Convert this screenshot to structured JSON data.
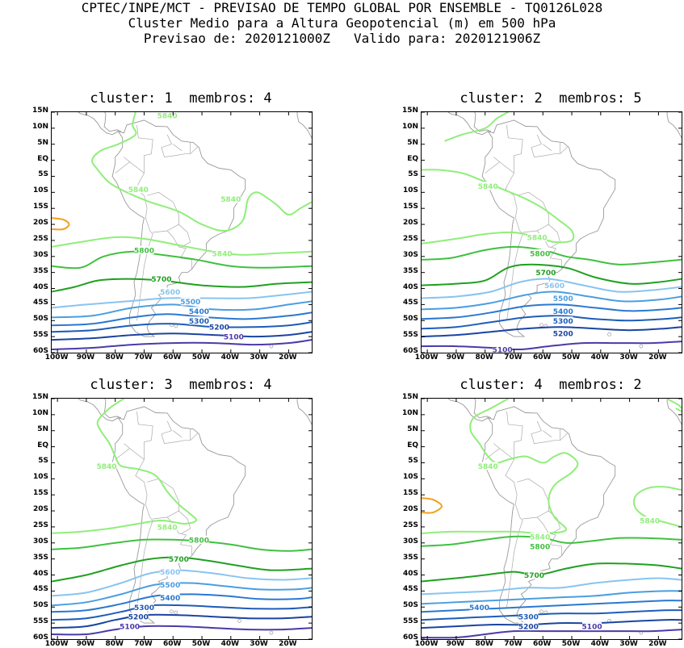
{
  "header": {
    "line1": "CPTEC/INPE/MCT - PREVISAO DE TEMPO GLOBAL POR ENSEMBLE - TQ0126L028",
    "line2": "Cluster Medio para a Altura Geopotencial (m) em 500 hPa",
    "line3": "Previsao de: 2020121000Z   Valido para: 2020121906Z"
  },
  "axes": {
    "lat_ticks": [
      "15N",
      "10N",
      "5N",
      "EQ",
      "5S",
      "10S",
      "15S",
      "20S",
      "25S",
      "30S",
      "35S",
      "40S",
      "45S",
      "50S",
      "55S",
      "60S"
    ],
    "lon_ticks": [
      "100W",
      "90W",
      "80W",
      "70W",
      "60W",
      "50W",
      "40W",
      "30W",
      "20W"
    ]
  },
  "colors": {
    "c5840": "#90ee7a",
    "c5800": "#40c040",
    "c5700": "#20a020",
    "c5600": "#88c4f0",
    "c5500": "#4a9ee0",
    "c5400": "#2a78d0",
    "c5300": "#1e5cb8",
    "c5200": "#1a44a0",
    "c5100": "#4a3aa8",
    "high": "#f0a020",
    "coast": "#999999"
  },
  "panels": [
    {
      "title": "cluster: 1  membros: 4",
      "labels": [
        {
          "text": "5840",
          "c": "c5840",
          "lon": -62,
          "lat": 14
        },
        {
          "text": "5840",
          "c": "c5840",
          "lon": -72,
          "lat": -9
        },
        {
          "text": "5840",
          "c": "c5840",
          "lon": -40,
          "lat": -12
        },
        {
          "text": "5840",
          "c": "c5840",
          "lon": -43,
          "lat": -29
        },
        {
          "text": "5800",
          "c": "c5800",
          "lon": -70,
          "lat": -28
        },
        {
          "text": "5700",
          "c": "c5700",
          "lon": -64,
          "lat": -37
        },
        {
          "text": "5600",
          "c": "c5600",
          "lon": -61,
          "lat": -41
        },
        {
          "text": "5500",
          "c": "c5500",
          "lon": -54,
          "lat": -44
        },
        {
          "text": "5400",
          "c": "c5400",
          "lon": -51,
          "lat": -47
        },
        {
          "text": "5300",
          "c": "c5300",
          "lon": -51,
          "lat": -50
        },
        {
          "text": "5200",
          "c": "c5200",
          "lon": -44,
          "lat": -52
        },
        {
          "text": "5100",
          "c": "c5100",
          "lon": -39,
          "lat": -55
        }
      ]
    },
    {
      "title": "cluster: 2  membros: 5",
      "labels": [
        {
          "text": "5840",
          "c": "c5840",
          "lon": -79,
          "lat": -8
        },
        {
          "text": "5840",
          "c": "c5840",
          "lon": -62,
          "lat": -24
        },
        {
          "text": "5800",
          "c": "c5800",
          "lon": -61,
          "lat": -29
        },
        {
          "text": "5700",
          "c": "c5700",
          "lon": -59,
          "lat": -35
        },
        {
          "text": "5600",
          "c": "c5600",
          "lon": -56,
          "lat": -39
        },
        {
          "text": "5500",
          "c": "c5500",
          "lon": -53,
          "lat": -43
        },
        {
          "text": "5400",
          "c": "c5400",
          "lon": -53,
          "lat": -47
        },
        {
          "text": "5300",
          "c": "c5300",
          "lon": -53,
          "lat": -50
        },
        {
          "text": "5200",
          "c": "c5200",
          "lon": -53,
          "lat": -54
        },
        {
          "text": "5100",
          "c": "c5100",
          "lon": -74,
          "lat": -59
        }
      ]
    },
    {
      "title": "cluster: 3  membros: 4",
      "labels": [
        {
          "text": "5840",
          "c": "c5840",
          "lon": -83,
          "lat": -6
        },
        {
          "text": "5840",
          "c": "c5840",
          "lon": -62,
          "lat": -25
        },
        {
          "text": "5800",
          "c": "c5800",
          "lon": -51,
          "lat": -29
        },
        {
          "text": "5700",
          "c": "c5700",
          "lon": -58,
          "lat": -35
        },
        {
          "text": "5600",
          "c": "c5600",
          "lon": -61,
          "lat": -39
        },
        {
          "text": "5500",
          "c": "c5500",
          "lon": -61,
          "lat": -43
        },
        {
          "text": "5400",
          "c": "c5400",
          "lon": -61,
          "lat": -47
        },
        {
          "text": "5300",
          "c": "c5300",
          "lon": -70,
          "lat": -50
        },
        {
          "text": "5200",
          "c": "c5200",
          "lon": -72,
          "lat": -53
        },
        {
          "text": "5100",
          "c": "c5100",
          "lon": -75,
          "lat": -56
        }
      ]
    },
    {
      "title": "cluster: 4  membros: 2",
      "labels": [
        {
          "text": "5840",
          "c": "c5840",
          "lon": -79,
          "lat": -6
        },
        {
          "text": "5840",
          "c": "c5840",
          "lon": -23,
          "lat": -23
        },
        {
          "text": "5840",
          "c": "c5840",
          "lon": -61,
          "lat": -28
        },
        {
          "text": "5800",
          "c": "c5800",
          "lon": -61,
          "lat": -31
        },
        {
          "text": "5700",
          "c": "c5700",
          "lon": -63,
          "lat": -40
        },
        {
          "text": "5400",
          "c": "c5400",
          "lon": -82,
          "lat": -50
        },
        {
          "text": "5300",
          "c": "c5300",
          "lon": -65,
          "lat": -53
        },
        {
          "text": "5200",
          "c": "c5200",
          "lon": -65,
          "lat": -56
        },
        {
          "text": "5100",
          "c": "c5100",
          "lon": -43,
          "lat": -56
        }
      ]
    }
  ]
}
